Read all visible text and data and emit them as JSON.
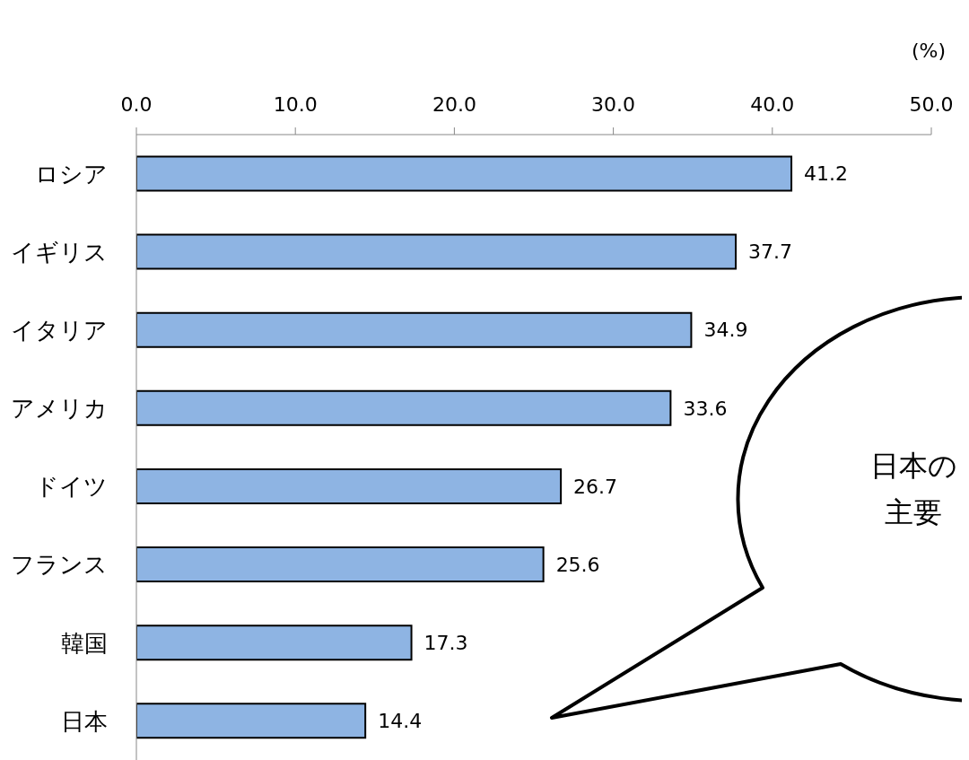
{
  "chart_data": {
    "type": "bar",
    "orientation": "horizontal",
    "xlabel": "(%)",
    "categories": [
      "ロシア",
      "イギリス",
      "イタリア",
      "アメリカ",
      "ドイツ",
      "フランス",
      "韓国",
      "日本"
    ],
    "values": [
      41.2,
      37.7,
      34.9,
      33.6,
      26.7,
      25.6,
      17.3,
      14.4
    ],
    "color": "#8eb4e3",
    "xlim": [
      0,
      50
    ],
    "xticks": [
      {
        "value": 0,
        "label": "0.0"
      },
      {
        "value": 10,
        "label": "10.0"
      },
      {
        "value": 20,
        "label": "20.0"
      },
      {
        "value": 30,
        "label": "30.0"
      },
      {
        "value": 40,
        "label": "40.0"
      },
      {
        "value": 50,
        "label": "50.0"
      }
    ],
    "data_labels": true,
    "grid": false,
    "legend": false,
    "annotations": [
      "日本の",
      "主要"
    ]
  }
}
